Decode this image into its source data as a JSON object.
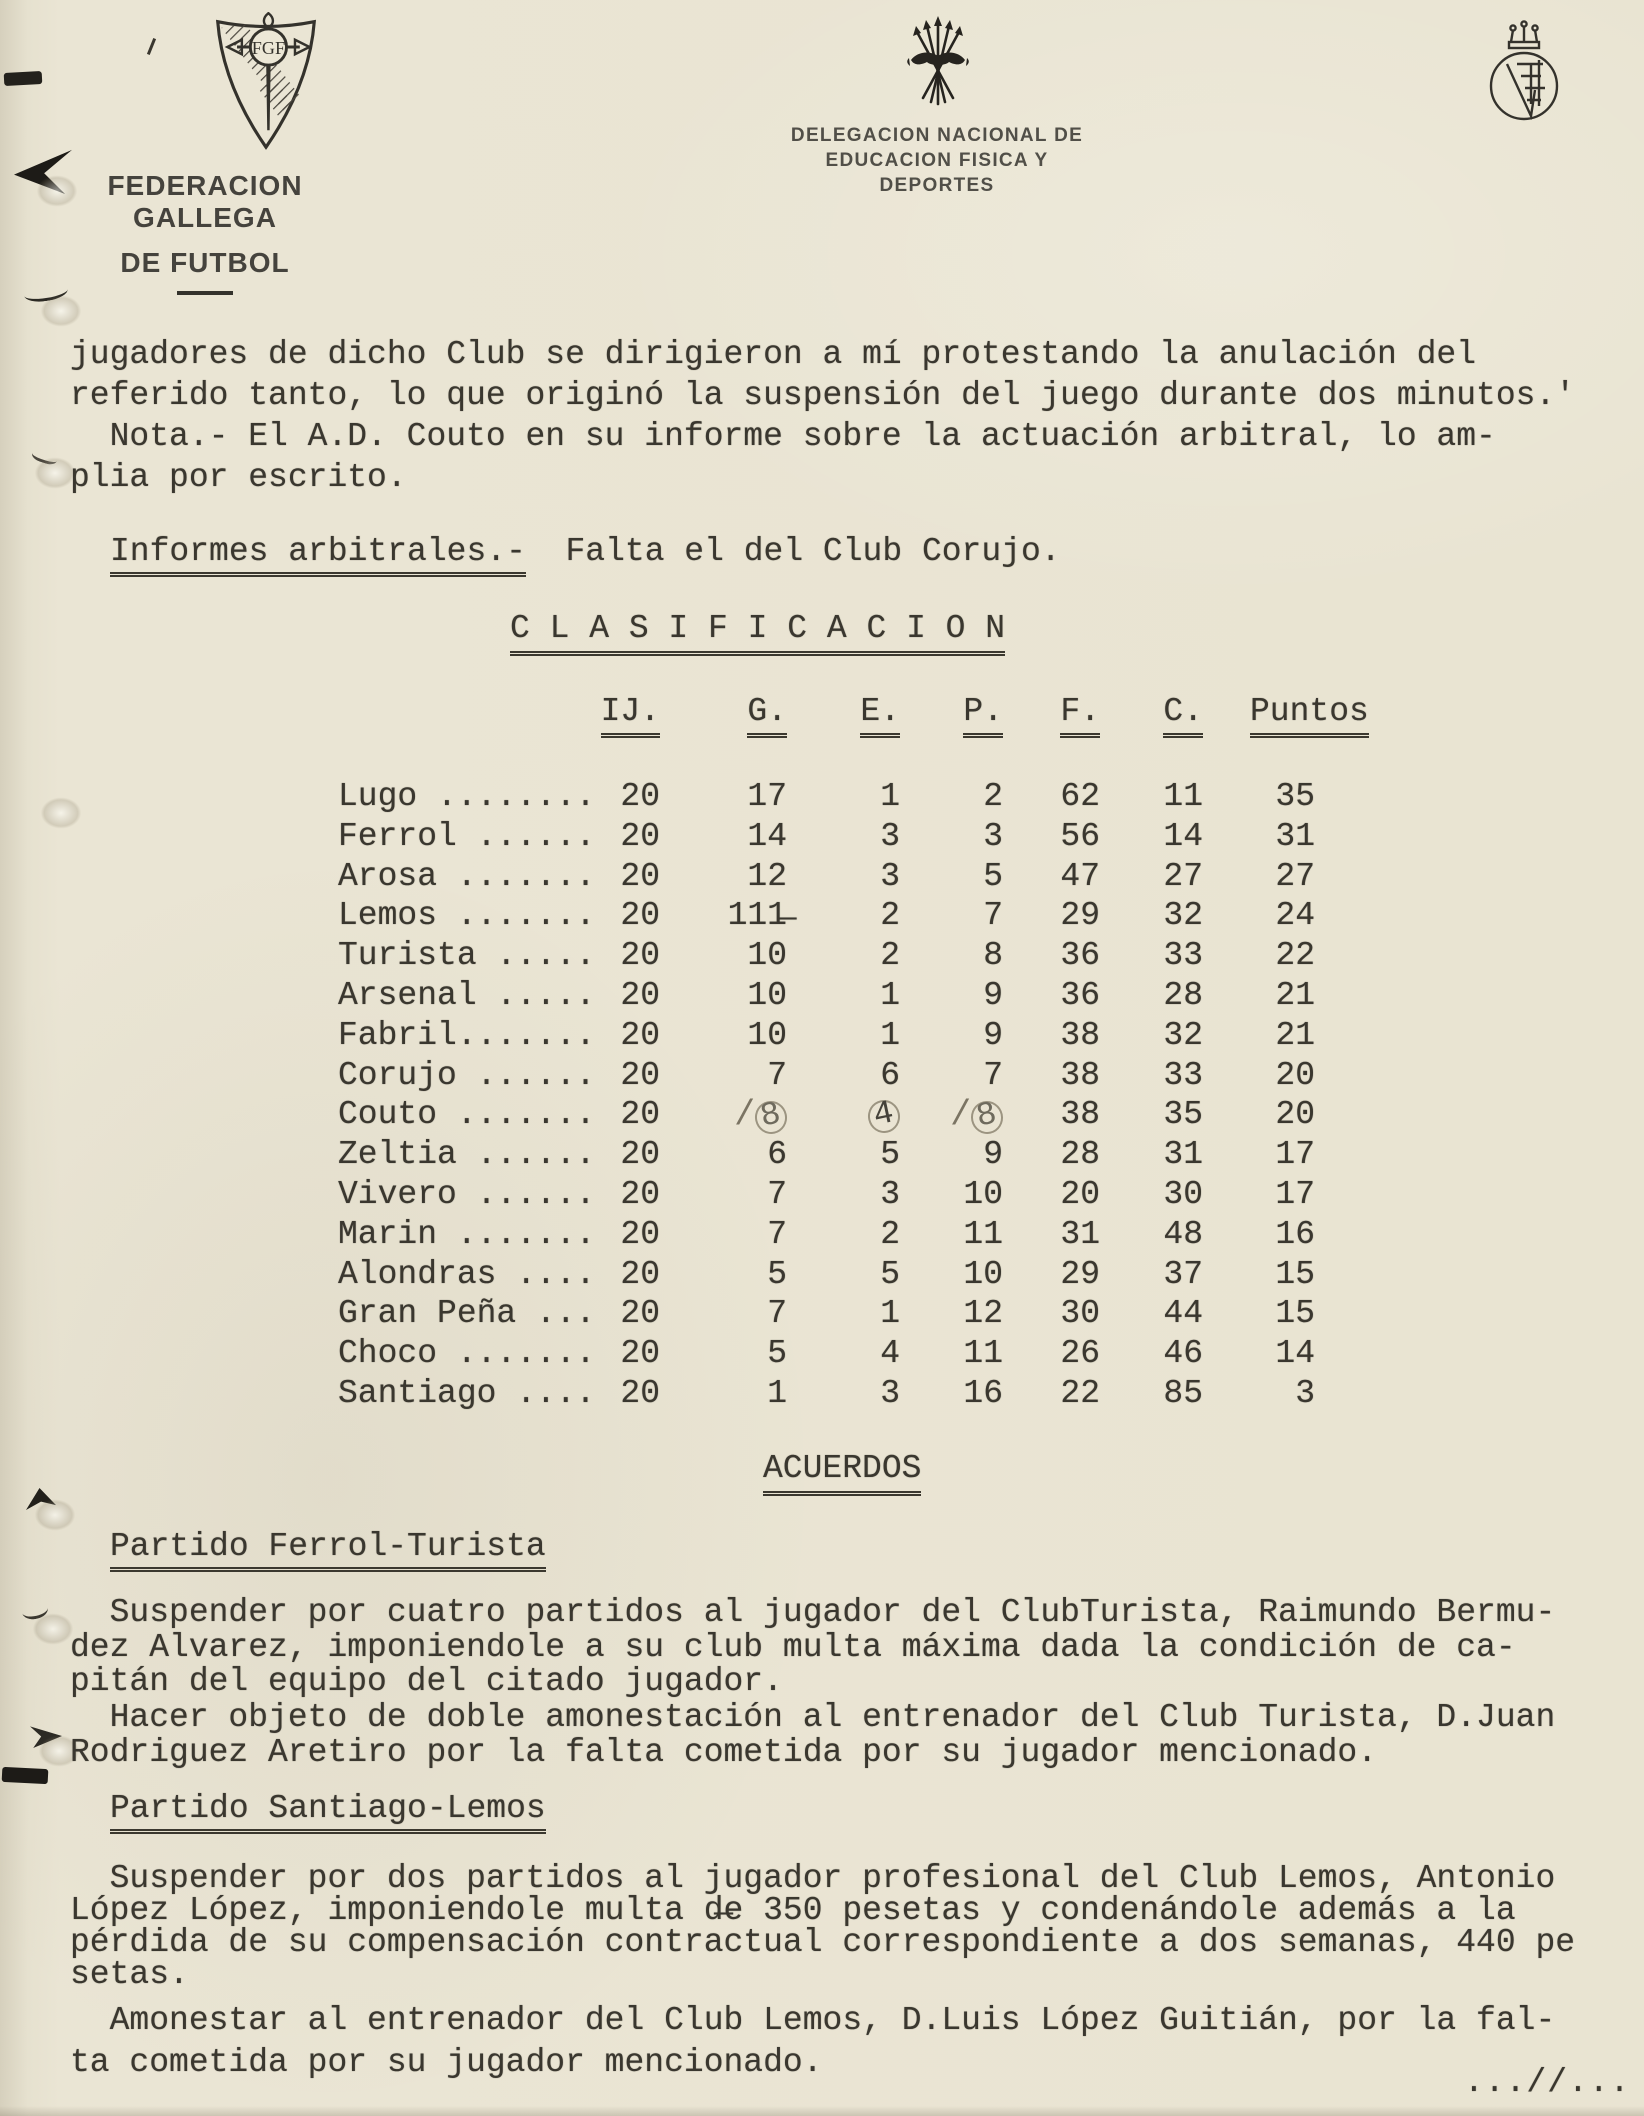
{
  "colors": {
    "paper": "#e9e4d2",
    "ink": "#3a372f",
    "pencil": "#77705f"
  },
  "letterhead": {
    "left": {
      "line1": "FEDERACION GALLEGA",
      "line2": "DE FUTBOL"
    },
    "center": {
      "line1": "DELEGACION NACIONAL DE",
      "line2": "EDUCACION FISICA Y DEPORTES"
    },
    "icons": {
      "left": "fgf-shield",
      "center": "yoke-and-arrows",
      "right": "federation-crest"
    }
  },
  "intro": {
    "lines": [
      "jugadores de dicho Club se dirigieron a mí protestando la anulación del",
      "referido tanto, lo que originó la suspensión del juego durante dos minutos.'",
      "  Nota.- El A.D. Couto en su informe sobre la actuación arbitral, lo am-",
      "plia por escrito."
    ]
  },
  "referee_reports": {
    "heading": "Informes arbitrales.-",
    "note": "  Falta el del Club Corujo."
  },
  "classification": {
    "title": "C L A S I F I C A C I O N",
    "columns": [
      "IJ.",
      "G.",
      "E.",
      "P.",
      "F.",
      "C.",
      "Puntos"
    ],
    "standings": [
      {
        "club": "Lugo ........",
        "ij": "20",
        "g": "17",
        "e": "1",
        "p": "2",
        "f": "62",
        "c": "11",
        "pts": "35"
      },
      {
        "club": "Ferrol ......",
        "ij": "20",
        "g": "14",
        "e": "3",
        "p": "3",
        "f": "56",
        "c": "14",
        "pts": "31"
      },
      {
        "club": "Arosa .......",
        "ij": "20",
        "g": "12",
        "e": "3",
        "p": "5",
        "f": "47",
        "c": "27",
        "pts": "27"
      },
      {
        "club": "Lemos .......",
        "ij": "20",
        "g": "111̶",
        "e": "2",
        "p": "7",
        "f": "29",
        "c": "32",
        "pts": "24"
      },
      {
        "club": "Turista .....",
        "ij": "20",
        "g": "10",
        "e": "2",
        "p": "8",
        "f": "36",
        "c": "33",
        "pts": "22"
      },
      {
        "club": "Arsenal .....",
        "ij": "20",
        "g": "10",
        "e": "1",
        "p": "9",
        "f": "36",
        "c": "28",
        "pts": "21"
      },
      {
        "club": "Fabril.......",
        "ij": "20",
        "g": "10",
        "e": "1",
        "p": "9",
        "f": "38",
        "c": "32",
        "pts": "21"
      },
      {
        "club": "Corujo ......",
        "ij": "20",
        "g": "7",
        "e": "6",
        "p": "7",
        "f": "38",
        "c": "33",
        "pts": "20"
      },
      {
        "club": "Couto .......",
        "ij": "20",
        "g": "/8",
        "e": "4",
        "p": "/8",
        "f": "38",
        "c": "35",
        "pts": "20",
        "pencil": {
          "g": "circle-slash",
          "e": "circle-dark",
          "p": "circle-slash"
        }
      },
      {
        "club": "Zeltia ......",
        "ij": "20",
        "g": "6",
        "e": "5",
        "p": "9",
        "f": "28",
        "c": "31",
        "pts": "17"
      },
      {
        "club": "Vivero ......",
        "ij": "20",
        "g": "7",
        "e": "3",
        "p": "10",
        "f": "20",
        "c": "30",
        "pts": "17"
      },
      {
        "club": "Marin .......",
        "ij": "20",
        "g": "7",
        "e": "2",
        "p": "11",
        "f": "31",
        "c": "48",
        "pts": "16"
      },
      {
        "club": "Alondras ....",
        "ij": "20",
        "g": "5",
        "e": "5",
        "p": "10",
        "f": "29",
        "c": "37",
        "pts": "15"
      },
      {
        "club": "Gran Peña ...",
        "ij": "20",
        "g": "7",
        "e": "1",
        "p": "12",
        "f": "30",
        "c": "44",
        "pts": "15"
      },
      {
        "club": "Choco .......",
        "ij": "20",
        "g": "5",
        "e": "4",
        "p": "11",
        "f": "26",
        "c": "46",
        "pts": "14"
      },
      {
        "club": "Santiago ....",
        "ij": "20",
        "g": "1",
        "e": "3",
        "p": "16",
        "f": "22",
        "c": "85",
        "pts": "3"
      }
    ]
  },
  "acuerdos": {
    "title": "ACUERDOS",
    "sections": [
      {
        "heading": "Partido Ferrol-Turista",
        "paragraphs": [
          [
            "  Suspender por cuatro partidos al jugador del ClubTurista, Raimundo Bermu-",
            "dez Alvarez, imponiendole a su club multa máxima dada la condición de ca-",
            "pitán del equipo del citado jugador."
          ],
          [
            "  Hacer objeto de doble amonestación al entrenador del Club Turista, D.Juan",
            "Rodriguez Aretiro por la falta cometida por su jugador mencionado."
          ]
        ]
      },
      {
        "heading": "Partido Santiago-Lemos",
        "paragraphs": [
          [
            "  Suspender por dos partidos al jugador profesional del Club Lemos, Antonio",
            "López López, imponiendole multa d̶e 350 pesetas y condenándole además a la",
            "pérdida de su compensación contractual correspondiente a dos semanas, 440 pe",
            "setas."
          ],
          [
            "  Amonestar al entrenador del Club Lemos, D.Luis López Guitián, por la fal-",
            "ta cometida por su jugador mencionado."
          ]
        ]
      }
    ]
  },
  "footer": {
    "continuation_mark": "...//..."
  }
}
